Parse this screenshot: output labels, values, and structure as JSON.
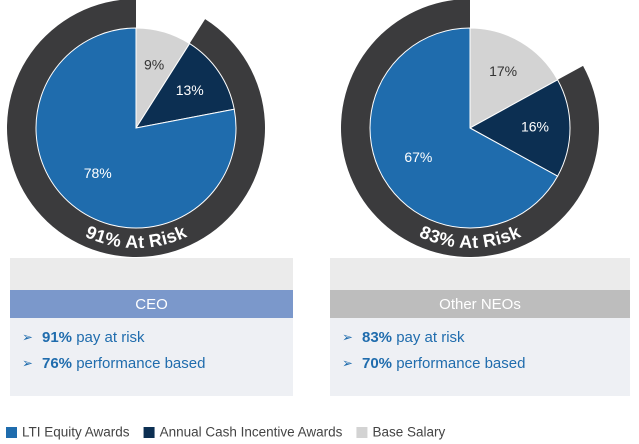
{
  "chart_data": [
    {
      "type": "pie",
      "title": "CEO",
      "values": [
        78,
        13,
        9
      ],
      "value_labels": [
        "78%",
        "13%",
        "9%"
      ],
      "ring_value": 91,
      "ring_label": "91% At Risk",
      "title_color": "#7b98cb",
      "bullets": [
        {
          "bold": "91%",
          "text": "pay at risk"
        },
        {
          "bold": "76%",
          "text": "performance based"
        }
      ]
    },
    {
      "type": "pie",
      "title": "Other NEOs",
      "values": [
        67,
        16,
        17
      ],
      "value_labels": [
        "67%",
        "16%",
        "17%"
      ],
      "ring_value": 83,
      "ring_label": "83% At Risk",
      "title_color": "#bdbdbd",
      "bullets": [
        {
          "bold": "83%",
          "text": "pay at risk"
        },
        {
          "bold": "70%",
          "text": "performance based"
        }
      ]
    }
  ],
  "legend": {
    "names": [
      "LTI Equity Awards",
      "Annual Cash Incentive Awards",
      "Base Salary"
    ],
    "colors": [
      "#1f6cad",
      "#0c2f52",
      "#d3d3d3"
    ],
    "ring_color": "#3b3b3d"
  }
}
